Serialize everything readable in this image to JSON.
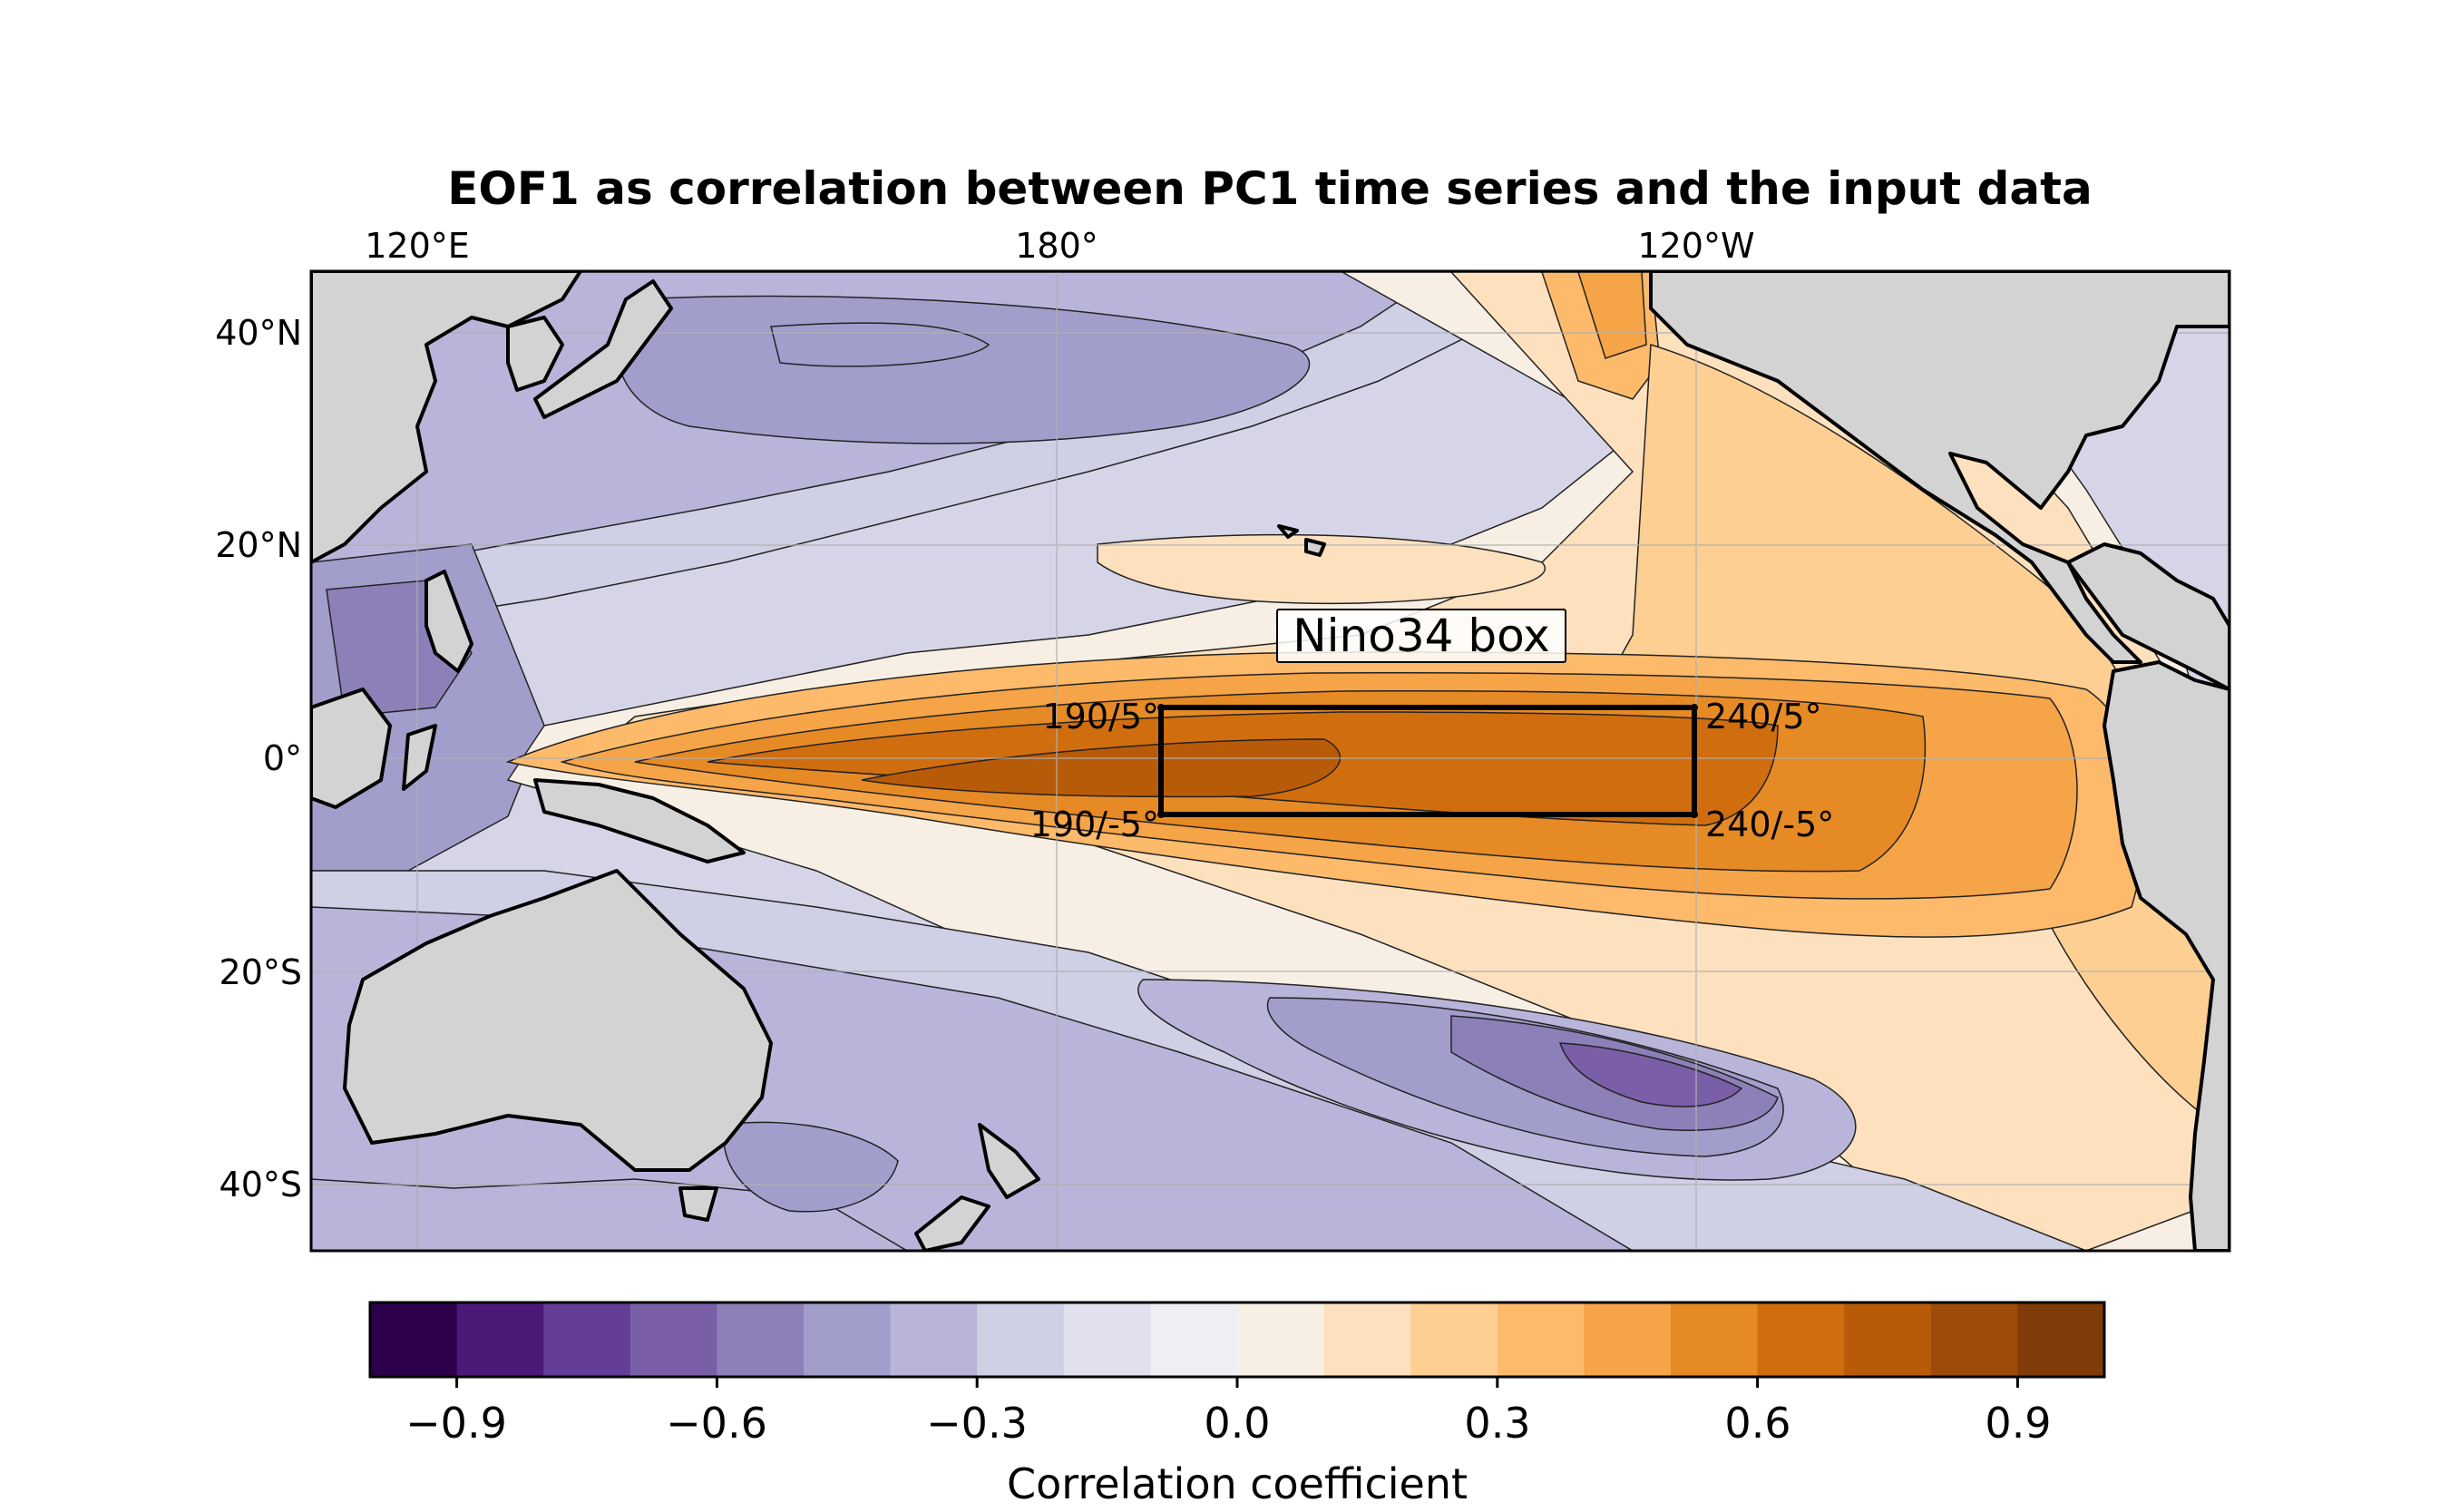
{
  "title": "EOF1 as correlation between PC1 time series and the input data",
  "map": {
    "lon_labels": [
      "120°E",
      "180°",
      "120°W"
    ],
    "lat_labels": [
      "40°N",
      "20°N",
      "0°",
      "20°S",
      "40°S"
    ],
    "extent": {
      "lon_min": 110,
      "lon_max": 290,
      "lat_min": -46,
      "lat_max": 46
    },
    "land_color": "#d3d3d3",
    "coastline_color": "#000000"
  },
  "nino34_box": {
    "label": "Nino34 box",
    "corners": {
      "upper_left": "190/5°",
      "upper_right": "240/5°",
      "lower_left": "190/-5°",
      "lower_right": "240/-5°"
    },
    "lon_range": [
      190,
      240
    ],
    "lat_range": [
      -5,
      5
    ]
  },
  "colorbar": {
    "label": "Correlation coefficient",
    "colormap": "PuOr_r",
    "range": [
      -1.0,
      1.0
    ],
    "step": 0.1,
    "tick_labels": [
      "−0.9",
      "−0.6",
      "−0.3",
      "0.0",
      "0.3",
      "0.6",
      "0.9"
    ],
    "colors": [
      "#2d004b",
      "#4b1a78",
      "#633d96",
      "#7a5fa8",
      "#8d80b8",
      "#a29ecb",
      "#b9b5da",
      "#cfcfe5",
      "#e0e0ee",
      "#efeff3",
      "#f8efe4",
      "#fde1bf",
      "#fecf93",
      "#fdba6b",
      "#f5a447",
      "#e68a25",
      "#d06e0f",
      "#b85b08",
      "#9c4b0a",
      "#7f3b08"
    ]
  }
}
